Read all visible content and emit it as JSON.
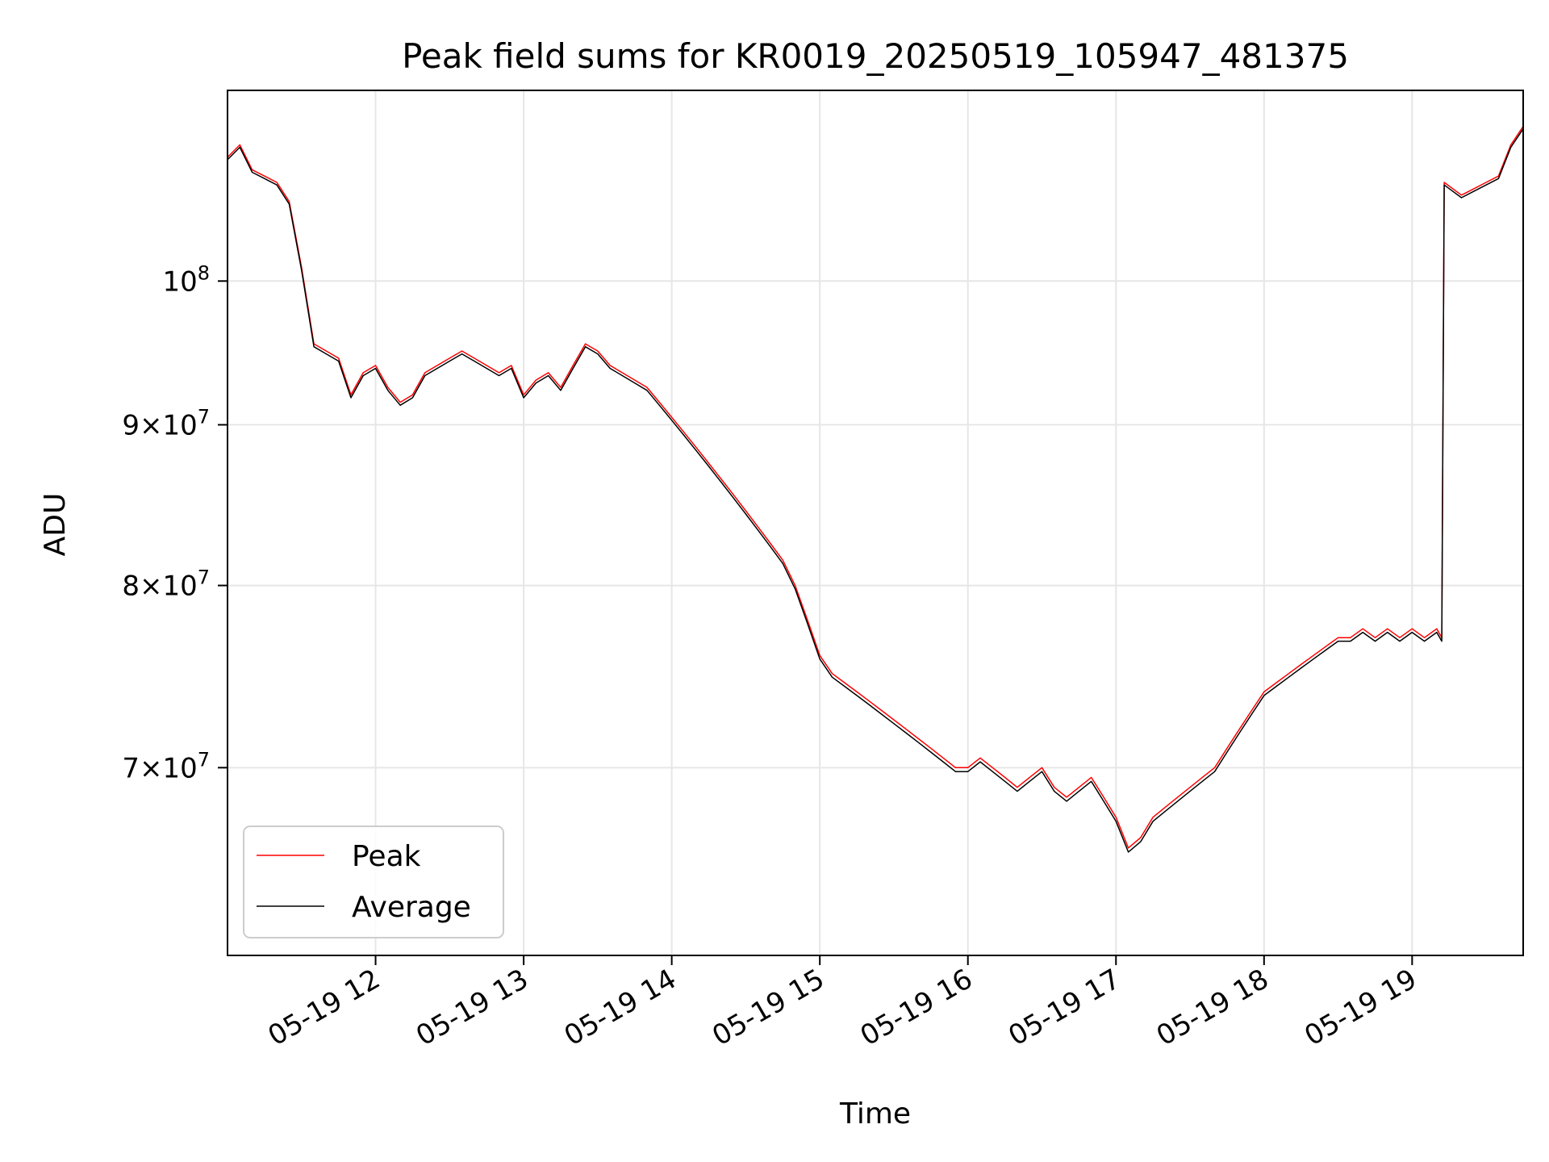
{
  "chart_data": {
    "type": "line",
    "title": "Peak field sums for KR0019_20250519_105947_481375",
    "xlabel": "Time",
    "ylabel": "ADU",
    "x_range": [
      "2025-05-19 11:00",
      "2025-05-19 19:45"
    ],
    "x_ticks": [
      {
        "time": "2025-05-19 12:00",
        "label": "05-19 12"
      },
      {
        "time": "2025-05-19 13:00",
        "label": "05-19 13"
      },
      {
        "time": "2025-05-19 14:00",
        "label": "05-19 14"
      },
      {
        "time": "2025-05-19 15:00",
        "label": "05-19 15"
      },
      {
        "time": "2025-05-19 16:00",
        "label": "05-19 16"
      },
      {
        "time": "2025-05-19 17:00",
        "label": "05-19 17"
      },
      {
        "time": "2025-05-19 18:00",
        "label": "05-19 18"
      },
      {
        "time": "2025-05-19 19:00",
        "label": "05-19 19"
      }
    ],
    "y_scale": "log",
    "ylim": [
      61000000,
      115000000
    ],
    "y_ticks": [
      {
        "value": 70000000,
        "base": "7",
        "exp": "7"
      },
      {
        "value": 80000000,
        "base": "8",
        "exp": "7"
      },
      {
        "value": 90000000,
        "base": "9",
        "exp": "7"
      },
      {
        "value": 100000000,
        "base": "",
        "exp": "8"
      }
    ],
    "grid": true,
    "legend_position": "lower-left",
    "series": [
      {
        "name": "Peak",
        "color": "#ff0000",
        "points": [
          [
            "2025-05-19 11:00",
            109500000
          ],
          [
            "2025-05-19 11:05",
            110500000
          ],
          [
            "2025-05-19 11:10",
            108500000
          ],
          [
            "2025-05-19 11:15",
            108000000
          ],
          [
            "2025-05-19 11:20",
            107500000
          ],
          [
            "2025-05-19 11:25",
            106000000
          ],
          [
            "2025-05-19 11:30",
            101000000
          ],
          [
            "2025-05-19 11:35",
            95500000
          ],
          [
            "2025-05-19 11:40",
            95000000
          ],
          [
            "2025-05-19 11:45",
            94500000
          ],
          [
            "2025-05-19 11:50",
            92000000
          ],
          [
            "2025-05-19 11:55",
            93500000
          ],
          [
            "2025-05-19 12:00",
            94000000
          ],
          [
            "2025-05-19 12:05",
            92500000
          ],
          [
            "2025-05-19 12:10",
            91500000
          ],
          [
            "2025-05-19 12:15",
            92000000
          ],
          [
            "2025-05-19 12:20",
            93500000
          ],
          [
            "2025-05-19 12:25",
            94000000
          ],
          [
            "2025-05-19 12:30",
            94500000
          ],
          [
            "2025-05-19 12:35",
            95000000
          ],
          [
            "2025-05-19 12:40",
            94500000
          ],
          [
            "2025-05-19 12:45",
            94000000
          ],
          [
            "2025-05-19 12:50",
            93500000
          ],
          [
            "2025-05-19 12:55",
            94000000
          ],
          [
            "2025-05-19 13:00",
            92000000
          ],
          [
            "2025-05-19 13:05",
            93000000
          ],
          [
            "2025-05-19 13:10",
            93500000
          ],
          [
            "2025-05-19 13:15",
            92500000
          ],
          [
            "2025-05-19 13:20",
            94000000
          ],
          [
            "2025-05-19 13:25",
            95500000
          ],
          [
            "2025-05-19 13:30",
            95000000
          ],
          [
            "2025-05-19 13:35",
            94000000
          ],
          [
            "2025-05-19 13:40",
            93500000
          ],
          [
            "2025-05-19 13:45",
            93000000
          ],
          [
            "2025-05-19 13:50",
            92500000
          ],
          [
            "2025-05-19 13:55",
            91500000
          ],
          [
            "2025-05-19 14:00",
            90500000
          ],
          [
            "2025-05-19 14:05",
            89500000
          ],
          [
            "2025-05-19 14:10",
            88500000
          ],
          [
            "2025-05-19 14:15",
            87500000
          ],
          [
            "2025-05-19 14:20",
            86500000
          ],
          [
            "2025-05-19 14:25",
            85500000
          ],
          [
            "2025-05-19 14:30",
            84500000
          ],
          [
            "2025-05-19 14:35",
            83500000
          ],
          [
            "2025-05-19 14:40",
            82500000
          ],
          [
            "2025-05-19 14:45",
            81500000
          ],
          [
            "2025-05-19 14:50",
            80000000
          ],
          [
            "2025-05-19 14:55",
            78000000
          ],
          [
            "2025-05-19 15:00",
            76000000
          ],
          [
            "2025-05-19 15:05",
            75000000
          ],
          [
            "2025-05-19 15:10",
            74500000
          ],
          [
            "2025-05-19 15:15",
            74000000
          ],
          [
            "2025-05-19 15:20",
            73500000
          ],
          [
            "2025-05-19 15:25",
            73000000
          ],
          [
            "2025-05-19 15:30",
            72500000
          ],
          [
            "2025-05-19 15:35",
            72000000
          ],
          [
            "2025-05-19 15:40",
            71500000
          ],
          [
            "2025-05-19 15:45",
            71000000
          ],
          [
            "2025-05-19 15:50",
            70500000
          ],
          [
            "2025-05-19 15:55",
            70000000
          ],
          [
            "2025-05-19 16:00",
            70000000
          ],
          [
            "2025-05-19 16:05",
            70500000
          ],
          [
            "2025-05-19 16:10",
            70000000
          ],
          [
            "2025-05-19 16:15",
            69500000
          ],
          [
            "2025-05-19 16:20",
            69000000
          ],
          [
            "2025-05-19 16:25",
            69500000
          ],
          [
            "2025-05-19 16:30",
            70000000
          ],
          [
            "2025-05-19 16:35",
            69000000
          ],
          [
            "2025-05-19 16:40",
            68500000
          ],
          [
            "2025-05-19 16:45",
            69000000
          ],
          [
            "2025-05-19 16:50",
            69500000
          ],
          [
            "2025-05-19 16:55",
            68500000
          ],
          [
            "2025-05-19 17:00",
            67500000
          ],
          [
            "2025-05-19 17:05",
            66000000
          ],
          [
            "2025-05-19 17:10",
            66500000
          ],
          [
            "2025-05-19 17:15",
            67500000
          ],
          [
            "2025-05-19 17:20",
            68000000
          ],
          [
            "2025-05-19 17:25",
            68500000
          ],
          [
            "2025-05-19 17:30",
            69000000
          ],
          [
            "2025-05-19 17:35",
            69500000
          ],
          [
            "2025-05-19 17:40",
            70000000
          ],
          [
            "2025-05-19 17:45",
            71000000
          ],
          [
            "2025-05-19 17:50",
            72000000
          ],
          [
            "2025-05-19 17:55",
            73000000
          ],
          [
            "2025-05-19 18:00",
            74000000
          ],
          [
            "2025-05-19 18:05",
            74500000
          ],
          [
            "2025-05-19 18:10",
            75000000
          ],
          [
            "2025-05-19 18:15",
            75500000
          ],
          [
            "2025-05-19 18:20",
            76000000
          ],
          [
            "2025-05-19 18:25",
            76500000
          ],
          [
            "2025-05-19 18:30",
            77000000
          ],
          [
            "2025-05-19 18:35",
            77000000
          ],
          [
            "2025-05-19 18:40",
            77500000
          ],
          [
            "2025-05-19 18:45",
            77000000
          ],
          [
            "2025-05-19 18:50",
            77500000
          ],
          [
            "2025-05-19 18:55",
            77000000
          ],
          [
            "2025-05-19 19:00",
            77500000
          ],
          [
            "2025-05-19 19:05",
            77000000
          ],
          [
            "2025-05-19 19:10",
            77500000
          ],
          [
            "2025-05-19 19:12",
            77000000
          ],
          [
            "2025-05-19 19:13",
            107500000
          ],
          [
            "2025-05-19 19:20",
            106500000
          ],
          [
            "2025-05-19 19:25",
            107000000
          ],
          [
            "2025-05-19 19:30",
            107500000
          ],
          [
            "2025-05-19 19:35",
            108000000
          ],
          [
            "2025-05-19 19:40",
            110500000
          ],
          [
            "2025-05-19 19:45",
            112000000
          ]
        ]
      },
      {
        "name": "Average",
        "color": "#000000",
        "points": [
          [
            "2025-05-19 11:00",
            109300000
          ],
          [
            "2025-05-19 11:05",
            110300000
          ],
          [
            "2025-05-19 11:10",
            108300000
          ],
          [
            "2025-05-19 11:15",
            107800000
          ],
          [
            "2025-05-19 11:20",
            107300000
          ],
          [
            "2025-05-19 11:25",
            105800000
          ],
          [
            "2025-05-19 11:30",
            100800000
          ],
          [
            "2025-05-19 11:35",
            95300000
          ],
          [
            "2025-05-19 11:40",
            94800000
          ],
          [
            "2025-05-19 11:45",
            94300000
          ],
          [
            "2025-05-19 11:50",
            91800000
          ],
          [
            "2025-05-19 11:55",
            93300000
          ],
          [
            "2025-05-19 12:00",
            93800000
          ],
          [
            "2025-05-19 12:05",
            92300000
          ],
          [
            "2025-05-19 12:10",
            91300000
          ],
          [
            "2025-05-19 12:15",
            91800000
          ],
          [
            "2025-05-19 12:20",
            93300000
          ],
          [
            "2025-05-19 12:25",
            93800000
          ],
          [
            "2025-05-19 12:30",
            94300000
          ],
          [
            "2025-05-19 12:35",
            94800000
          ],
          [
            "2025-05-19 12:40",
            94300000
          ],
          [
            "2025-05-19 12:45",
            93800000
          ],
          [
            "2025-05-19 12:50",
            93300000
          ],
          [
            "2025-05-19 12:55",
            93800000
          ],
          [
            "2025-05-19 13:00",
            91800000
          ],
          [
            "2025-05-19 13:05",
            92800000
          ],
          [
            "2025-05-19 13:10",
            93300000
          ],
          [
            "2025-05-19 13:15",
            92300000
          ],
          [
            "2025-05-19 13:20",
            93800000
          ],
          [
            "2025-05-19 13:25",
            95300000
          ],
          [
            "2025-05-19 13:30",
            94800000
          ],
          [
            "2025-05-19 13:35",
            93800000
          ],
          [
            "2025-05-19 13:40",
            93300000
          ],
          [
            "2025-05-19 13:45",
            92800000
          ],
          [
            "2025-05-19 13:50",
            92300000
          ],
          [
            "2025-05-19 13:55",
            91300000
          ],
          [
            "2025-05-19 14:00",
            90300000
          ],
          [
            "2025-05-19 14:05",
            89300000
          ],
          [
            "2025-05-19 14:10",
            88300000
          ],
          [
            "2025-05-19 14:15",
            87300000
          ],
          [
            "2025-05-19 14:20",
            86300000
          ],
          [
            "2025-05-19 14:25",
            85300000
          ],
          [
            "2025-05-19 14:30",
            84300000
          ],
          [
            "2025-05-19 14:35",
            83300000
          ],
          [
            "2025-05-19 14:40",
            82300000
          ],
          [
            "2025-05-19 14:45",
            81300000
          ],
          [
            "2025-05-19 14:50",
            79800000
          ],
          [
            "2025-05-19 14:55",
            77800000
          ],
          [
            "2025-05-19 15:00",
            75800000
          ],
          [
            "2025-05-19 15:05",
            74800000
          ],
          [
            "2025-05-19 15:10",
            74300000
          ],
          [
            "2025-05-19 15:15",
            73800000
          ],
          [
            "2025-05-19 15:20",
            73300000
          ],
          [
            "2025-05-19 15:25",
            72800000
          ],
          [
            "2025-05-19 15:30",
            72300000
          ],
          [
            "2025-05-19 15:35",
            71800000
          ],
          [
            "2025-05-19 15:40",
            71300000
          ],
          [
            "2025-05-19 15:45",
            70800000
          ],
          [
            "2025-05-19 15:50",
            70300000
          ],
          [
            "2025-05-19 15:55",
            69800000
          ],
          [
            "2025-05-19 16:00",
            69800000
          ],
          [
            "2025-05-19 16:05",
            70300000
          ],
          [
            "2025-05-19 16:10",
            69800000
          ],
          [
            "2025-05-19 16:15",
            69300000
          ],
          [
            "2025-05-19 16:20",
            68800000
          ],
          [
            "2025-05-19 16:25",
            69300000
          ],
          [
            "2025-05-19 16:30",
            69800000
          ],
          [
            "2025-05-19 16:35",
            68800000
          ],
          [
            "2025-05-19 16:40",
            68300000
          ],
          [
            "2025-05-19 16:45",
            68800000
          ],
          [
            "2025-05-19 16:50",
            69300000
          ],
          [
            "2025-05-19 16:55",
            68300000
          ],
          [
            "2025-05-19 17:00",
            67300000
          ],
          [
            "2025-05-19 17:05",
            65800000
          ],
          [
            "2025-05-19 17:10",
            66300000
          ],
          [
            "2025-05-19 17:15",
            67300000
          ],
          [
            "2025-05-19 17:20",
            67800000
          ],
          [
            "2025-05-19 17:25",
            68300000
          ],
          [
            "2025-05-19 17:30",
            68800000
          ],
          [
            "2025-05-19 17:35",
            69300000
          ],
          [
            "2025-05-19 17:40",
            69800000
          ],
          [
            "2025-05-19 17:45",
            70800000
          ],
          [
            "2025-05-19 17:50",
            71800000
          ],
          [
            "2025-05-19 17:55",
            72800000
          ],
          [
            "2025-05-19 18:00",
            73800000
          ],
          [
            "2025-05-19 18:05",
            74300000
          ],
          [
            "2025-05-19 18:10",
            74800000
          ],
          [
            "2025-05-19 18:15",
            75300000
          ],
          [
            "2025-05-19 18:20",
            75800000
          ],
          [
            "2025-05-19 18:25",
            76300000
          ],
          [
            "2025-05-19 18:30",
            76800000
          ],
          [
            "2025-05-19 18:35",
            76800000
          ],
          [
            "2025-05-19 18:40",
            77300000
          ],
          [
            "2025-05-19 18:45",
            76800000
          ],
          [
            "2025-05-19 18:50",
            77300000
          ],
          [
            "2025-05-19 18:55",
            76800000
          ],
          [
            "2025-05-19 19:00",
            77300000
          ],
          [
            "2025-05-19 19:05",
            76800000
          ],
          [
            "2025-05-19 19:10",
            77300000
          ],
          [
            "2025-05-19 19:12",
            76800000
          ],
          [
            "2025-05-19 19:13",
            107300000
          ],
          [
            "2025-05-19 19:20",
            106300000
          ],
          [
            "2025-05-19 19:25",
            106800000
          ],
          [
            "2025-05-19 19:30",
            107300000
          ],
          [
            "2025-05-19 19:35",
            107800000
          ],
          [
            "2025-05-19 19:40",
            110300000
          ],
          [
            "2025-05-19 19:45",
            111800000
          ]
        ]
      }
    ]
  }
}
